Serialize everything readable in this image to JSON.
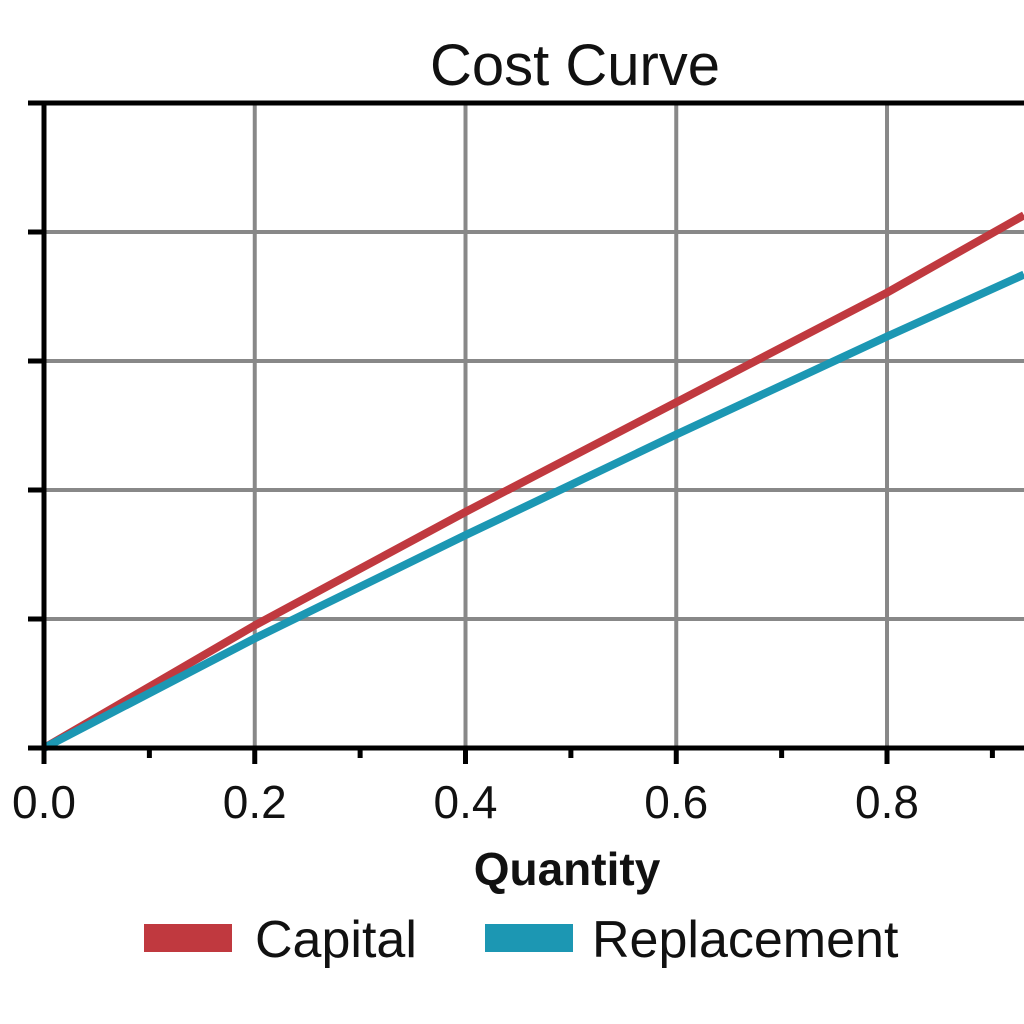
{
  "chart_data": {
    "type": "line",
    "title": "Cost Curve",
    "xlabel": "Quantity",
    "ylabel": "",
    "xlim": [
      0,
      0.93
    ],
    "ylim": [
      0,
      5
    ],
    "x_ticks": [
      "0.0",
      "0.2",
      "0.4",
      "0.6",
      "0.8"
    ],
    "x_tick_values": [
      0,
      0.2,
      0.4,
      0.6,
      0.8
    ],
    "y_tick_values": [
      0,
      1,
      2,
      3,
      4,
      5
    ],
    "grid": true,
    "legend_position": "bottom",
    "series": [
      {
        "name": "Capital",
        "color": "#c0393f",
        "x": [
          0,
          0.2,
          0.4,
          0.6,
          0.8,
          0.93
        ],
        "y": [
          0,
          0.95,
          1.83,
          2.68,
          3.53,
          4.13
        ]
      },
      {
        "name": "Replacement",
        "color": "#1c97b3",
        "x": [
          0,
          0.2,
          0.4,
          0.6,
          0.8,
          0.93
        ],
        "y": [
          0,
          0.85,
          1.65,
          2.43,
          3.19,
          3.67
        ]
      }
    ]
  }
}
